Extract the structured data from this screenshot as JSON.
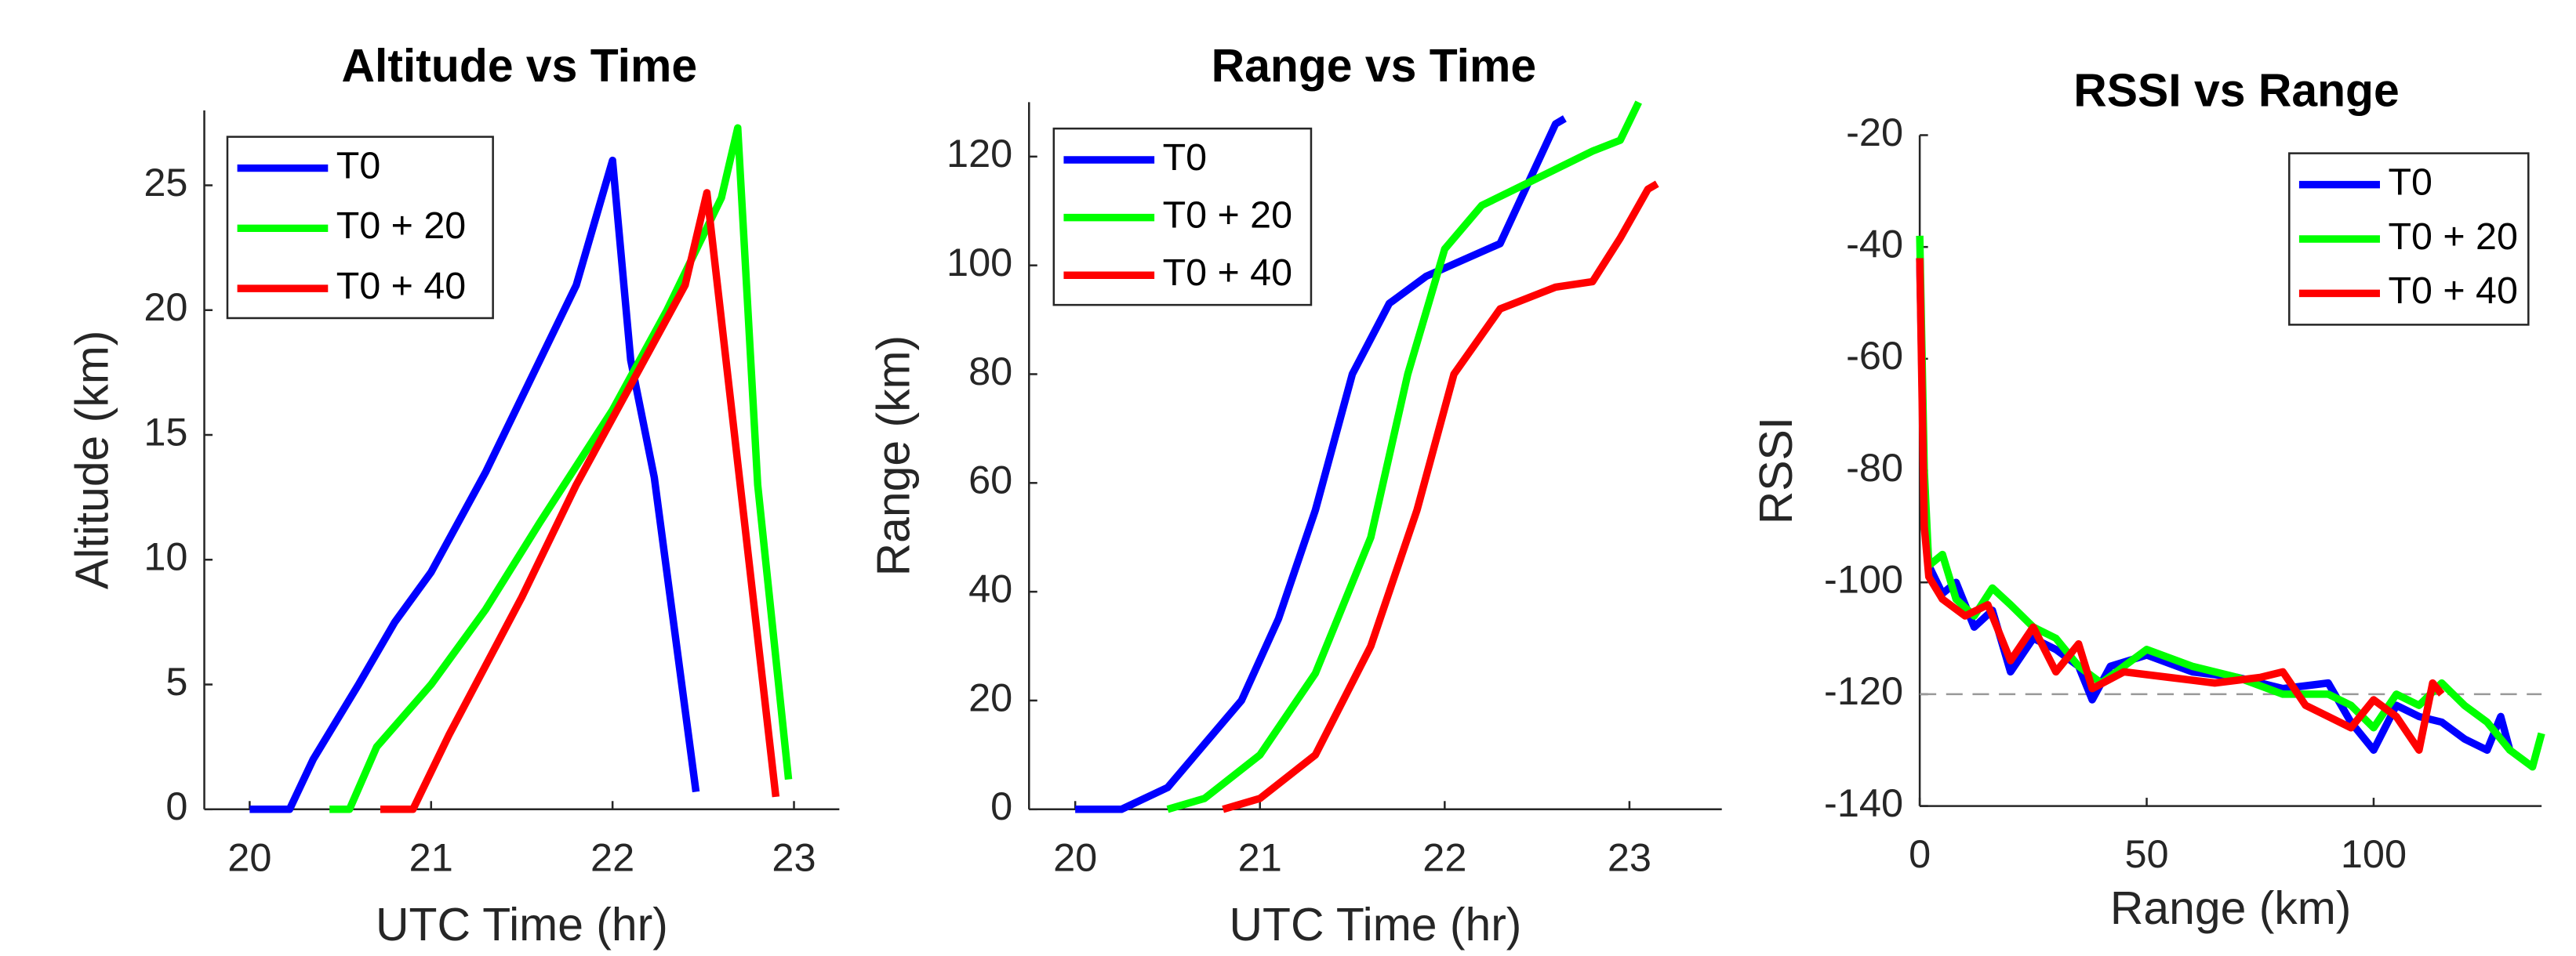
{
  "chart_data": [
    {
      "type": "line",
      "title": "Altitude vs Time",
      "x_label": "UTC Time (hr)",
      "y_label": "Altitude (km)",
      "xlim": [
        19.75,
        23.25
      ],
      "ylim": [
        0,
        28
      ],
      "xticks": [
        20,
        21,
        22,
        23
      ],
      "yticks": [
        0,
        5,
        10,
        15,
        20,
        25
      ],
      "legend": "upper left",
      "series": [
        {
          "name": "T0",
          "color": "#0000ff",
          "x": [
            20.0,
            20.22,
            20.35,
            20.6,
            20.8,
            21.0,
            21.3,
            21.6,
            21.8,
            22.0,
            22.1,
            22.23,
            22.46
          ],
          "values": [
            0,
            0,
            2,
            5,
            7.5,
            9.5,
            13.5,
            18,
            21,
            26,
            18,
            13.3,
            0.7
          ]
        },
        {
          "name": "T0 + 20",
          "color": "#00ff00",
          "x": [
            20.44,
            20.55,
            20.7,
            21.0,
            21.3,
            21.6,
            22.0,
            22.3,
            22.6,
            22.69,
            22.8,
            22.97
          ],
          "values": [
            0,
            0,
            2.5,
            5,
            8,
            11.5,
            16,
            20,
            24.5,
            27.3,
            13,
            1.2
          ]
        },
        {
          "name": "T0 + 40",
          "color": "#ff0000",
          "x": [
            20.72,
            20.9,
            21.1,
            21.5,
            21.8,
            22.1,
            22.4,
            22.52,
            22.9
          ],
          "values": [
            0,
            0,
            3,
            8.5,
            13,
            17,
            21,
            24.7,
            0.5
          ]
        }
      ]
    },
    {
      "type": "line",
      "title": "Range vs Time",
      "x_label": "UTC Time (hr)",
      "y_label": "Range (km)",
      "xlim": [
        19.75,
        23.5
      ],
      "ylim": [
        0,
        130
      ],
      "xticks": [
        20,
        21,
        22,
        23
      ],
      "yticks": [
        0,
        20,
        40,
        60,
        80,
        100,
        120
      ],
      "legend": "upper left",
      "series": [
        {
          "name": "T0",
          "color": "#0000ff",
          "x": [
            20.0,
            20.25,
            20.5,
            20.7,
            20.9,
            21.1,
            21.3,
            21.5,
            21.7,
            21.9,
            22.1,
            22.3,
            22.45,
            22.6,
            22.65
          ],
          "values": [
            0,
            0,
            4,
            12,
            20,
            35,
            55,
            80,
            93,
            98,
            101,
            104,
            115,
            126,
            127
          ]
        },
        {
          "name": "T0 + 20",
          "color": "#00ff00",
          "x": [
            20.5,
            20.7,
            21.0,
            21.3,
            21.6,
            21.8,
            22.0,
            22.2,
            22.5,
            22.8,
            22.95,
            23.05
          ],
          "values": [
            0,
            2,
            10,
            25,
            50,
            80,
            103,
            111,
            116,
            121,
            123,
            130
          ]
        },
        {
          "name": "T0 + 40",
          "color": "#ff0000",
          "x": [
            20.8,
            21.0,
            21.3,
            21.6,
            21.85,
            22.05,
            22.3,
            22.6,
            22.8,
            22.95,
            23.1,
            23.15
          ],
          "values": [
            0,
            2,
            10,
            30,
            55,
            80,
            92,
            96,
            97,
            105,
            114,
            115
          ]
        }
      ]
    },
    {
      "type": "line",
      "title": "RSSI vs Range",
      "x_label": "Range (km)",
      "y_label": "RSSI",
      "xlim": [
        0,
        137
      ],
      "ylim": [
        -140,
        -20
      ],
      "xticks": [
        0,
        50,
        100
      ],
      "yticks": [
        -140,
        -120,
        -100,
        -80,
        -60,
        -40,
        -20
      ],
      "legend": "upper right",
      "reference_line": -120,
      "series": [
        {
          "name": "T0",
          "color": "#0000ff",
          "x": [
            0,
            1,
            2,
            5,
            8,
            12,
            16,
            20,
            25,
            30,
            35,
            38,
            42,
            50,
            60,
            70,
            80,
            90,
            95,
            100,
            105,
            110,
            115,
            120,
            125,
            128,
            130
          ],
          "values": [
            -42,
            -85,
            -97,
            -102,
            -100,
            -108,
            -105,
            -116,
            -110,
            -112,
            -115,
            -121,
            -115,
            -113,
            -116,
            -117,
            -119,
            -118,
            -125,
            -130,
            -122,
            -124,
            -125,
            -128,
            -130,
            -124,
            -130
          ]
        },
        {
          "name": "T0 + 20",
          "color": "#00ff00",
          "x": [
            0,
            1,
            2,
            5,
            8,
            12,
            16,
            20,
            25,
            30,
            35,
            40,
            45,
            50,
            60,
            70,
            80,
            90,
            95,
            100,
            105,
            110,
            115,
            120,
            125,
            130,
            135,
            137
          ],
          "values": [
            -38,
            -80,
            -97,
            -95,
            -103,
            -106,
            -101,
            -104,
            -108,
            -110,
            -115,
            -118,
            -115,
            -112,
            -115,
            -117,
            -120,
            -120,
            -122,
            -126,
            -120,
            -122,
            -118,
            -122,
            -125,
            -130,
            -133,
            -127
          ]
        },
        {
          "name": "T0 + 40",
          "color": "#ff0000",
          "x": [
            0,
            1,
            2,
            5,
            10,
            15,
            20,
            25,
            30,
            35,
            38,
            45,
            55,
            65,
            75,
            80,
            85,
            90,
            95,
            100,
            105,
            110,
            113,
            115
          ],
          "values": [
            -42,
            -90,
            -99,
            -103,
            -106,
            -104,
            -114,
            -108,
            -116,
            -111,
            -119,
            -116,
            -117,
            -118,
            -117,
            -116,
            -122,
            -124,
            -126,
            -121,
            -124,
            -130,
            -118,
            -120
          ]
        }
      ]
    }
  ]
}
